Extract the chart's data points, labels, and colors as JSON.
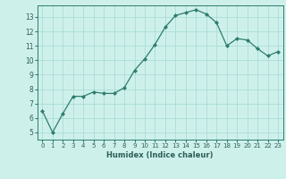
{
  "x": [
    0,
    1,
    2,
    3,
    4,
    5,
    6,
    7,
    8,
    9,
    10,
    11,
    12,
    13,
    14,
    15,
    16,
    17,
    18,
    19,
    20,
    21,
    22,
    23
  ],
  "y": [
    6.5,
    5.0,
    6.3,
    7.5,
    7.5,
    7.8,
    7.7,
    7.7,
    8.1,
    9.3,
    10.1,
    11.1,
    12.3,
    13.1,
    13.3,
    13.5,
    13.2,
    12.6,
    11.0,
    11.5,
    11.4,
    10.8,
    10.3,
    10.6
  ],
  "xlabel": "Humidex (Indice chaleur)",
  "ylim": [
    4.5,
    13.8
  ],
  "xlim": [
    -0.5,
    23.5
  ],
  "yticks": [
    5,
    6,
    7,
    8,
    9,
    10,
    11,
    12,
    13
  ],
  "xticks": [
    0,
    1,
    2,
    3,
    4,
    5,
    6,
    7,
    8,
    9,
    10,
    11,
    12,
    13,
    14,
    15,
    16,
    17,
    18,
    19,
    20,
    21,
    22,
    23
  ],
  "line_color": "#2e7d6e",
  "marker_color": "#2e7d6e",
  "bg_color": "#cef0eb",
  "grid_color": "#aaddd7",
  "tick_label_color": "#2e5d58",
  "xlabel_color": "#2e5d58"
}
